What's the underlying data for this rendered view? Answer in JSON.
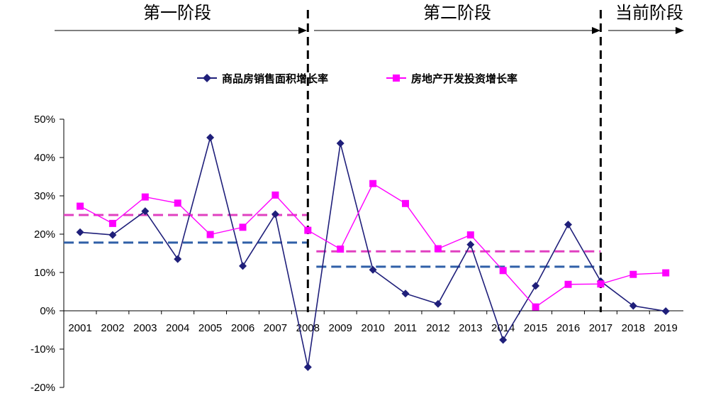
{
  "chart_data": {
    "type": "line",
    "title": "",
    "xlabel": "",
    "ylabel": "",
    "categories": [
      "2001",
      "2002",
      "2003",
      "2004",
      "2005",
      "2006",
      "2007",
      "2008",
      "2009",
      "2010",
      "2011",
      "2012",
      "2013",
      "2014",
      "2015",
      "2016",
      "2017",
      "2018",
      "2019"
    ],
    "y_ticks": [
      "50%",
      "40%",
      "30%",
      "20%",
      "10%",
      "0%",
      "-10%",
      "-20%"
    ],
    "ylim": [
      -0.2,
      0.5
    ],
    "grid": false,
    "legend_position": "top-center",
    "series": [
      {
        "name": "商品房销售面积增长率",
        "color": "#1f1f7a",
        "marker": "diamond",
        "values": [
          0.205,
          0.198,
          0.26,
          0.135,
          0.452,
          0.117,
          0.252,
          -0.147,
          0.437,
          0.107,
          0.045,
          0.018,
          0.173,
          -0.076,
          0.065,
          0.225,
          0.077,
          0.013,
          -0.001
        ]
      },
      {
        "name": "房地产开发投资增长率",
        "color": "#ff00ff",
        "marker": "square",
        "values": [
          0.273,
          0.228,
          0.297,
          0.281,
          0.199,
          0.218,
          0.302,
          0.21,
          0.161,
          0.332,
          0.28,
          0.162,
          0.198,
          0.105,
          0.01,
          0.069,
          0.07,
          0.095,
          0.099
        ]
      }
    ],
    "stages": [
      {
        "label": "第一阶段",
        "start": "2001",
        "end": "2008"
      },
      {
        "label": "第二阶段",
        "start": "2008",
        "end": "2017"
      },
      {
        "label": "当前阶段",
        "start": "2017",
        "end": ""
      }
    ],
    "stage_dividers": [
      "2008",
      "2017"
    ],
    "average_lines": [
      {
        "series": "房地产开发投资增长率",
        "from": "2001",
        "to": "2008",
        "value": 0.25,
        "color": "#e040c0"
      },
      {
        "series": "商品房销售面积增长率",
        "from": "2001",
        "to": "2008",
        "value": 0.178,
        "color": "#2f5fa7"
      },
      {
        "series": "房地产开发投资增长率",
        "from": "2008",
        "to": "2017",
        "value": 0.155,
        "color": "#e040c0"
      },
      {
        "series": "商品房销售面积增长率",
        "from": "2008",
        "to": "2017",
        "value": 0.115,
        "color": "#2f5fa7"
      }
    ]
  }
}
